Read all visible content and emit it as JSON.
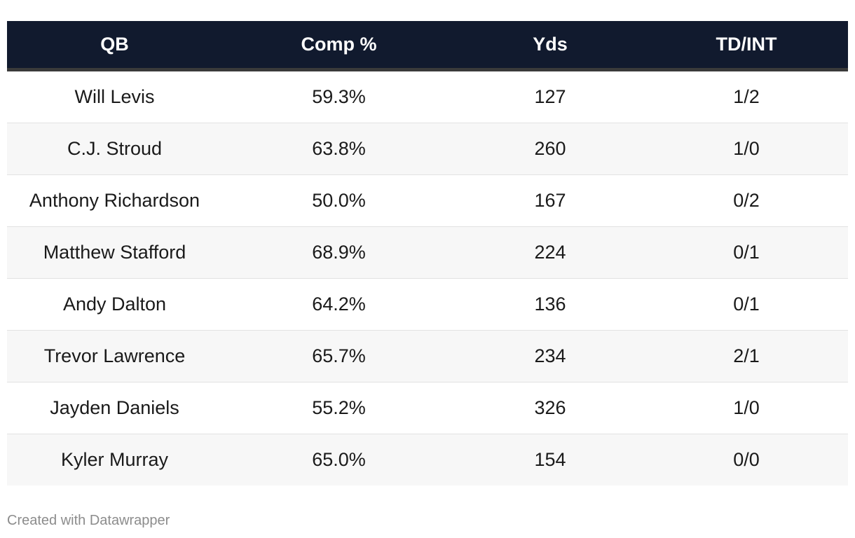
{
  "chart_data": {
    "type": "table",
    "columns": [
      "QB",
      "Comp %",
      "Yds",
      "TD/INT"
    ],
    "rows": [
      [
        "Will Levis",
        "59.3%",
        "127",
        "1/2"
      ],
      [
        "C.J. Stroud",
        "63.8%",
        "260",
        "1/0"
      ],
      [
        "Anthony Richardson",
        "50.0%",
        "167",
        "0/2"
      ],
      [
        "Matthew Stafford",
        "68.9%",
        "224",
        "0/1"
      ],
      [
        "Andy Dalton",
        "64.2%",
        "136",
        "0/1"
      ],
      [
        "Trevor Lawrence",
        "65.7%",
        "234",
        "2/1"
      ],
      [
        "Jayden Daniels",
        "55.2%",
        "326",
        "1/0"
      ],
      [
        "Kyler Murray",
        "65.0%",
        "154",
        "0/0"
      ]
    ]
  },
  "footer": {
    "credit": "Created with Datawrapper"
  },
  "colors": {
    "header_bg": "#111a2e",
    "header_text": "#ffffff",
    "stripe": "#f7f7f7"
  }
}
